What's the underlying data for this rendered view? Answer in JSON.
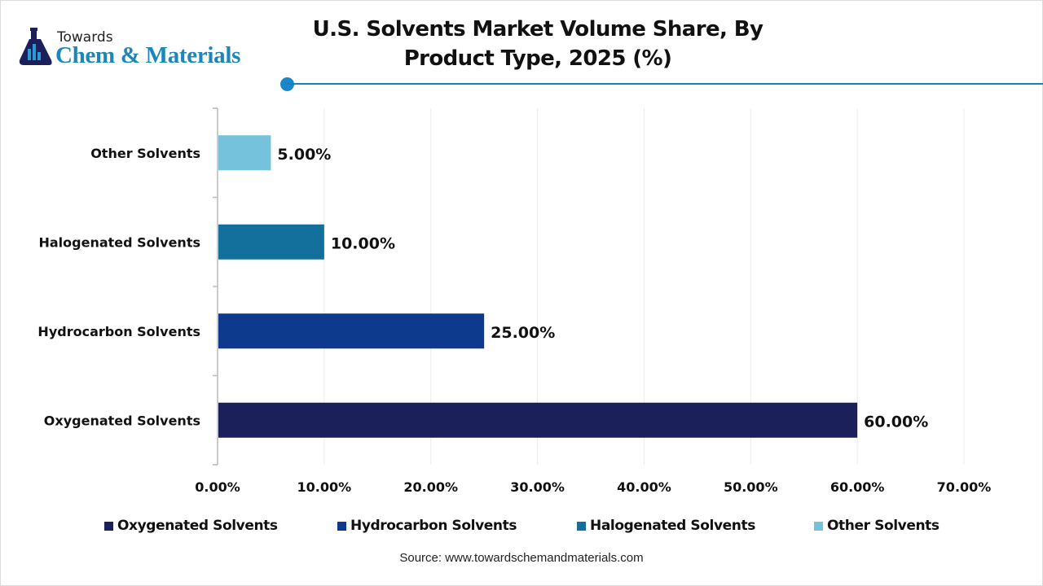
{
  "logo": {
    "top": "Towards",
    "main": "Chem & Materials"
  },
  "chart_data": {
    "type": "bar",
    "orientation": "horizontal",
    "title": "U.S. Solvents Market Volume Share, By Product Type, 2025 (%)",
    "categories": [
      "Oxygenated Solvents",
      "Hydrocarbon Solvents",
      "Halogenated Solvents",
      "Other Solvents"
    ],
    "values": [
      60,
      25,
      10,
      5
    ],
    "data_labels": [
      "60.00%",
      "25.00%",
      "10.00%",
      "5.00%"
    ],
    "colors": [
      "#1b1f5a",
      "#0e3a8e",
      "#13709d",
      "#74c2dc"
    ],
    "xlim": [
      0,
      70
    ],
    "xticks": [
      "0.00%",
      "10.00%",
      "20.00%",
      "30.00%",
      "40.00%",
      "50.00%",
      "60.00%",
      "70.00%"
    ],
    "grid": "vertical",
    "legend": "bottom",
    "legend_entries": [
      "Oxygenated Solvents",
      "Hydrocarbon Solvents",
      "Halogenated Solvents",
      "Other Solvents"
    ]
  },
  "source": "Source: www.towardschemandmaterials.com",
  "accent_color": "#1a86cc"
}
